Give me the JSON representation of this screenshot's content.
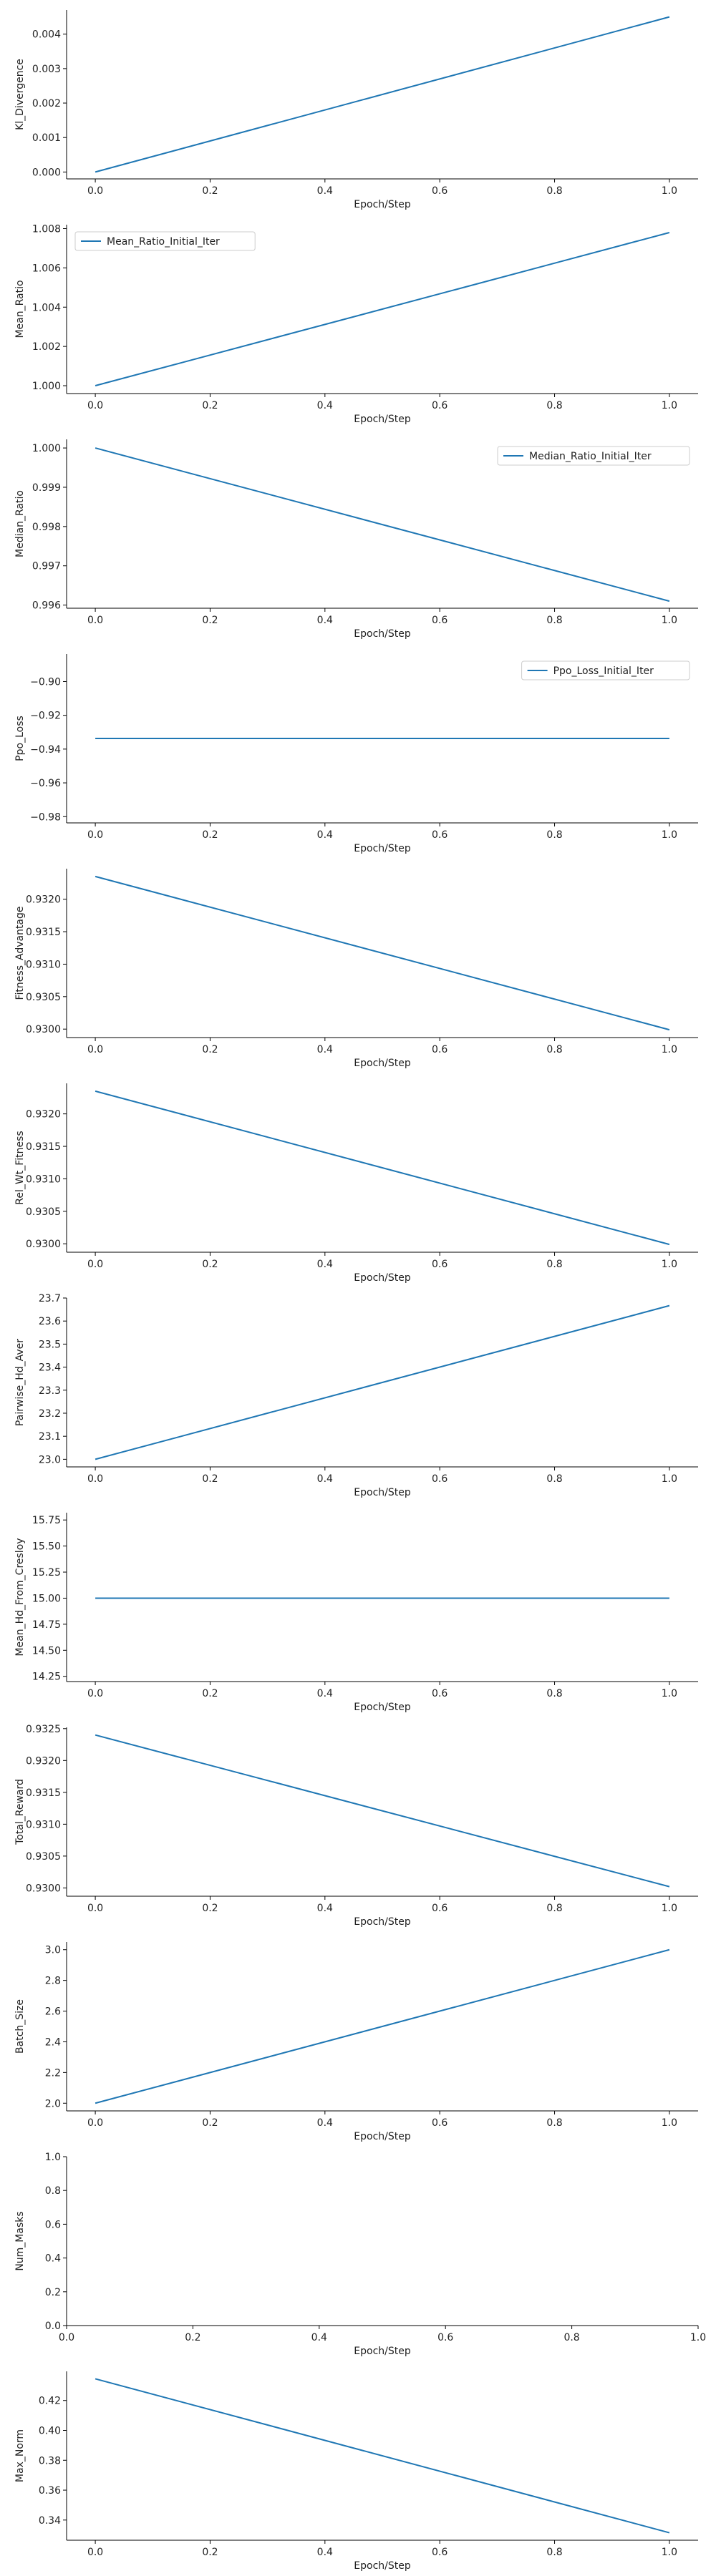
{
  "line_color": "#1f77b4",
  "chart_data": [
    {
      "type": "line",
      "xlabel": "Epoch/Step",
      "ylabel": "Kl_Divergence",
      "x": [
        0.0,
        1.0
      ],
      "y": [
        0.0,
        0.0045
      ],
      "xlim": [
        -0.05,
        1.05
      ],
      "ylim": [
        -0.0002,
        0.0047
      ],
      "xticks": [
        0.0,
        0.2,
        0.4,
        0.6,
        0.8,
        1.0
      ],
      "xtick_labels": [
        "0.0",
        "0.2",
        "0.4",
        "0.6",
        "0.8",
        "1.0"
      ],
      "yticks": [
        0.0,
        0.001,
        0.002,
        0.003,
        0.004
      ],
      "ytick_labels": [
        "0.000",
        "0.001",
        "0.002",
        "0.003",
        "0.004"
      ],
      "legend": null,
      "legend_loc": null
    },
    {
      "type": "line",
      "xlabel": "Epoch/Step",
      "ylabel": "Mean_Ratio",
      "x": [
        0.0,
        1.0
      ],
      "y": [
        1.0,
        1.0078
      ],
      "xlim": [
        -0.05,
        1.05
      ],
      "ylim": [
        0.9996,
        1.0082
      ],
      "xticks": [
        0.0,
        0.2,
        0.4,
        0.6,
        0.8,
        1.0
      ],
      "xtick_labels": [
        "0.0",
        "0.2",
        "0.4",
        "0.6",
        "0.8",
        "1.0"
      ],
      "yticks": [
        1.0,
        1.002,
        1.004,
        1.006,
        1.008
      ],
      "ytick_labels": [
        "1.000",
        "1.002",
        "1.004",
        "1.006",
        "1.008"
      ],
      "legend": "Mean_Ratio_Initial_Iter",
      "legend_loc": "top-left"
    },
    {
      "type": "line",
      "xlabel": "Epoch/Step",
      "ylabel": "Median_Ratio",
      "x": [
        0.0,
        1.0
      ],
      "y": [
        1.0,
        0.9961
      ],
      "xlim": [
        -0.05,
        1.05
      ],
      "ylim": [
        0.99592,
        1.00022
      ],
      "xticks": [
        0.0,
        0.2,
        0.4,
        0.6,
        0.8,
        1.0
      ],
      "xtick_labels": [
        "0.0",
        "0.2",
        "0.4",
        "0.6",
        "0.8",
        "1.0"
      ],
      "yticks": [
        0.996,
        0.997,
        0.998,
        0.999,
        1.0
      ],
      "ytick_labels": [
        "0.996",
        "0.997",
        "0.998",
        "0.999",
        "1.000"
      ],
      "legend": "Median_Ratio_Initial_Iter",
      "legend_loc": "top-right"
    },
    {
      "type": "line",
      "xlabel": "Epoch/Step",
      "ylabel": "Ppo_Loss",
      "x": [
        0.0,
        1.0
      ],
      "y": [
        -0.9337,
        -0.9337
      ],
      "xlim": [
        -0.05,
        1.05
      ],
      "ylim": [
        -0.9837,
        -0.8837
      ],
      "xticks": [
        0.0,
        0.2,
        0.4,
        0.6,
        0.8,
        1.0
      ],
      "xtick_labels": [
        "0.0",
        "0.2",
        "0.4",
        "0.6",
        "0.8",
        "1.0"
      ],
      "yticks": [
        -0.98,
        -0.96,
        -0.94,
        -0.92,
        -0.9
      ],
      "ytick_labels": [
        "−0.98",
        "−0.96",
        "−0.94",
        "−0.92",
        "−0.90"
      ],
      "legend": "Ppo_Loss_Initial_Iter",
      "legend_loc": "top-right"
    },
    {
      "type": "line",
      "xlabel": "Epoch/Step",
      "ylabel": "Fitness_Advantage",
      "x": [
        0.0,
        1.0
      ],
      "y": [
        0.93235,
        0.92999
      ],
      "xlim": [
        -0.05,
        1.05
      ],
      "ylim": [
        0.92987,
        0.93247
      ],
      "xticks": [
        0.0,
        0.2,
        0.4,
        0.6,
        0.8,
        1.0
      ],
      "xtick_labels": [
        "0.0",
        "0.2",
        "0.4",
        "0.6",
        "0.8",
        "1.0"
      ],
      "yticks": [
        0.93,
        0.9305,
        0.931,
        0.9315,
        0.932
      ],
      "ytick_labels": [
        "0.9300",
        "0.9305",
        "0.9310",
        "0.9315",
        "0.9320"
      ],
      "legend": null,
      "legend_loc": null
    },
    {
      "type": "line",
      "xlabel": "Epoch/Step",
      "ylabel": "Rel_Wt_Fitness",
      "x": [
        0.0,
        1.0
      ],
      "y": [
        0.93235,
        0.92999
      ],
      "xlim": [
        -0.05,
        1.05
      ],
      "ylim": [
        0.92987,
        0.93247
      ],
      "xticks": [
        0.0,
        0.2,
        0.4,
        0.6,
        0.8,
        1.0
      ],
      "xtick_labels": [
        "0.0",
        "0.2",
        "0.4",
        "0.6",
        "0.8",
        "1.0"
      ],
      "yticks": [
        0.93,
        0.9305,
        0.931,
        0.9315,
        0.932
      ],
      "ytick_labels": [
        "0.9300",
        "0.9305",
        "0.9310",
        "0.9315",
        "0.9320"
      ],
      "legend": null,
      "legend_loc": null
    },
    {
      "type": "line",
      "xlabel": "Epoch/Step",
      "ylabel": "Pairwise_Hd_Aver",
      "x": [
        0.0,
        1.0
      ],
      "y": [
        23.0,
        23.667
      ],
      "xlim": [
        -0.05,
        1.05
      ],
      "ylim": [
        22.967,
        23.7
      ],
      "xticks": [
        0.0,
        0.2,
        0.4,
        0.6,
        0.8,
        1.0
      ],
      "xtick_labels": [
        "0.0",
        "0.2",
        "0.4",
        "0.6",
        "0.8",
        "1.0"
      ],
      "yticks": [
        23.0,
        23.1,
        23.2,
        23.3,
        23.4,
        23.5,
        23.6,
        23.7
      ],
      "ytick_labels": [
        "23.0",
        "23.1",
        "23.2",
        "23.3",
        "23.4",
        "23.5",
        "23.6",
        "23.7"
      ],
      "legend": null,
      "legend_loc": null
    },
    {
      "type": "line",
      "xlabel": "Epoch/Step",
      "ylabel": "Mean_Hd_From_Cresloy",
      "x": [
        0.0,
        1.0
      ],
      "y": [
        15.0,
        15.0
      ],
      "xlim": [
        -0.05,
        1.05
      ],
      "ylim": [
        14.2,
        15.82
      ],
      "xticks": [
        0.0,
        0.2,
        0.4,
        0.6,
        0.8,
        1.0
      ],
      "xtick_labels": [
        "0.0",
        "0.2",
        "0.4",
        "0.6",
        "0.8",
        "1.0"
      ],
      "yticks": [
        14.25,
        14.5,
        14.75,
        15.0,
        15.25,
        15.5,
        15.75
      ],
      "ytick_labels": [
        "14.25",
        "14.50",
        "14.75",
        "15.00",
        "15.25",
        "15.50",
        "15.75"
      ],
      "legend": null,
      "legend_loc": null
    },
    {
      "type": "line",
      "xlabel": "Epoch/Step",
      "ylabel": "Total_Reward",
      "x": [
        0.0,
        1.0
      ],
      "y": [
        0.9324,
        0.93002
      ],
      "xlim": [
        -0.05,
        1.05
      ],
      "ylim": [
        0.92987,
        0.93252
      ],
      "xticks": [
        0.0,
        0.2,
        0.4,
        0.6,
        0.8,
        1.0
      ],
      "xtick_labels": [
        "0.0",
        "0.2",
        "0.4",
        "0.6",
        "0.8",
        "1.0"
      ],
      "yticks": [
        0.93,
        0.9305,
        0.931,
        0.9315,
        0.932,
        0.9325
      ],
      "ytick_labels": [
        "0.9300",
        "0.9305",
        "0.9310",
        "0.9315",
        "0.9320",
        "0.9325"
      ],
      "legend": null,
      "legend_loc": null
    },
    {
      "type": "line",
      "xlabel": "Epoch/Step",
      "ylabel": "Batch_Size",
      "x": [
        0.0,
        1.0
      ],
      "y": [
        2.0,
        3.0
      ],
      "xlim": [
        -0.05,
        1.05
      ],
      "ylim": [
        1.95,
        3.05
      ],
      "xticks": [
        0.0,
        0.2,
        0.4,
        0.6,
        0.8,
        1.0
      ],
      "xtick_labels": [
        "0.0",
        "0.2",
        "0.4",
        "0.6",
        "0.8",
        "1.0"
      ],
      "yticks": [
        2.0,
        2.2,
        2.4,
        2.6,
        2.8,
        3.0
      ],
      "ytick_labels": [
        "2.0",
        "2.2",
        "2.4",
        "2.6",
        "2.8",
        "3.0"
      ],
      "legend": null,
      "legend_loc": null
    },
    {
      "type": "line",
      "xlabel": "Epoch/Step",
      "ylabel": "Num_Masks",
      "x": [],
      "y": [],
      "xlim": [
        0.0,
        1.0
      ],
      "ylim": [
        0.0,
        1.0
      ],
      "xticks": [
        0.0,
        0.2,
        0.4,
        0.6,
        0.8,
        1.0
      ],
      "xtick_labels": [
        "0.0",
        "0.2",
        "0.4",
        "0.6",
        "0.8",
        "1.0"
      ],
      "yticks": [
        0.0,
        0.2,
        0.4,
        0.6,
        0.8,
        1.0
      ],
      "ytick_labels": [
        "0.0",
        "0.2",
        "0.4",
        "0.6",
        "0.8",
        "1.0"
      ],
      "legend": null,
      "legend_loc": null
    },
    {
      "type": "line",
      "xlabel": "Epoch/Step",
      "ylabel": "Max_Norm",
      "x": [
        0.0,
        1.0
      ],
      "y": [
        0.4345,
        0.3315
      ],
      "xlim": [
        -0.05,
        1.05
      ],
      "ylim": [
        0.3265,
        0.4395
      ],
      "xticks": [
        0.0,
        0.2,
        0.4,
        0.6,
        0.8,
        1.0
      ],
      "xtick_labels": [
        "0.0",
        "0.2",
        "0.4",
        "0.6",
        "0.8",
        "1.0"
      ],
      "yticks": [
        0.34,
        0.36,
        0.38,
        0.4,
        0.42
      ],
      "ytick_labels": [
        "0.34",
        "0.36",
        "0.38",
        "0.40",
        "0.42"
      ],
      "legend": null,
      "legend_loc": null
    }
  ]
}
